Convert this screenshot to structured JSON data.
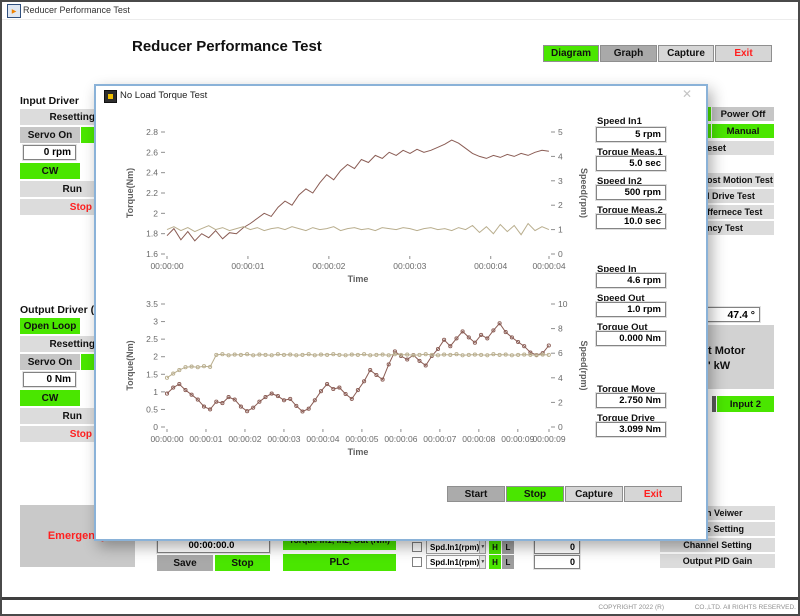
{
  "window": {
    "title": "Reducer Performance Test"
  },
  "header": {
    "title": "Reducer Performance Test"
  },
  "nav": {
    "diagram": "Diagram",
    "graph": "Graph",
    "capture": "Capture",
    "exit": "Exit"
  },
  "input_driver": {
    "title": "Input Driver",
    "resetting": "Resetting",
    "servo_on": "Servo On",
    "speed_value": "0 rpm",
    "cw": "CW",
    "run": "Run",
    "stop": "Stop"
  },
  "output_driver": {
    "title": "Output Driver (Torq",
    "open_loop": "Open Loop",
    "resetting": "Resetting",
    "servo_on": "Servo On",
    "torque_value": "0 Nm",
    "cw": "CW",
    "run": "Run",
    "stop": "Stop"
  },
  "right_panel": {
    "power_off": "Power Off",
    "manual": "Manual",
    "reset_frag": "eset",
    "tests": [
      "ost Motion Test",
      "l Drive Test",
      "ffernece Test",
      "ncy Test"
    ],
    "temp_value": "47.4 °",
    "motor_frag1": "t Motor",
    "motor_frag2": "' kW",
    "input2": "Input 2"
  },
  "emergency": {
    "label": "Emergency"
  },
  "bottom": {
    "timer": "00:00:00.0",
    "save": "Save",
    "stop": "Stop",
    "torque_button": "Torque In1, In2, Out (Nm)",
    "plc": "PLC",
    "monitor_rows": [
      {
        "select": "Spd.In1(rpm)",
        "h": "H",
        "l": "L",
        "value": "0"
      },
      {
        "select": "Spd.In1(rpm)",
        "h": "H",
        "l": "L",
        "value": "0"
      }
    ],
    "right_buttons": [
      "n Veiwer",
      "e Setting",
      "Channel Setting",
      "Output PID Gain"
    ],
    "copyright_left": "COPYRIGHT 2022 (R)",
    "copyright_right": "CO.,LTD. All RIGHTS RESERVED."
  },
  "dialog": {
    "title": "No Load Torque Test",
    "close": "✕",
    "fields": [
      {
        "label": "Speed In1",
        "value": "5 rpm"
      },
      {
        "label": "Torque Meas.1",
        "value": "5.0 sec"
      },
      {
        "label": "Speed In2",
        "value": "500 rpm"
      },
      {
        "label": "Torque Meas.2",
        "value": "10.0 sec"
      },
      {
        "label": "Speed In",
        "value": "4.6 rpm"
      },
      {
        "label": "Speed Out",
        "value": "1.0 rpm"
      },
      {
        "label": "Torque Out",
        "value": "0.000 Nm"
      },
      {
        "label": "Torque Move",
        "value": "2.750 Nm"
      },
      {
        "label": "Torque Drive",
        "value": "3.099 Nm"
      }
    ],
    "buttons": {
      "start": "Start",
      "stop": "Stop",
      "capture": "Capture",
      "exit": "Exit"
    }
  },
  "icons": {
    "dropdown": "▼"
  },
  "colors": {
    "green": "#4ae600",
    "dialog_border": "#8ab2d8",
    "series_torque": "#8a5c54",
    "series_speed": "#b9ae8e"
  },
  "chart_data": [
    {
      "type": "line",
      "title": "",
      "xlabel": "Time",
      "ylabel": "Torque(Nm)",
      "y2label": "Speed(rpm)",
      "xlim": [
        0,
        4.72
      ],
      "ylim": [
        1.6,
        2.8
      ],
      "y2lim": [
        0,
        5
      ],
      "grid": false,
      "legend": "none",
      "plot": {
        "l": 63,
        "r": 445,
        "t": 22,
        "b": 144
      },
      "yticks": [
        1.6,
        1.8,
        2,
        2.2,
        2.4,
        2.6,
        2.8
      ],
      "y2ticks": [
        0,
        1,
        2,
        3,
        4,
        5
      ],
      "xticks": [
        {
          "t": 0,
          "label": "00:00:00"
        },
        {
          "t": 1,
          "label": "00:00:01"
        },
        {
          "t": 2,
          "label": "00:00:02"
        },
        {
          "t": 3,
          "label": "00:00:03"
        },
        {
          "t": 4,
          "label": "00:00:04"
        },
        {
          "t": 4.72,
          "label": "00:00:04"
        }
      ],
      "series": [
        {
          "name": "Torque",
          "axis": "y",
          "color": "#8a5c54",
          "markers": false,
          "t0": 0,
          "dt": 0.0858,
          "values": [
            1.78,
            1.85,
            1.74,
            1.82,
            1.73,
            1.8,
            1.76,
            1.83,
            1.75,
            1.81,
            1.8,
            1.86,
            1.9,
            1.95,
            2.0,
            1.97,
            2.06,
            2.12,
            2.08,
            2.18,
            2.24,
            2.2,
            2.3,
            2.38,
            2.33,
            2.42,
            2.48,
            2.44,
            2.53,
            2.5,
            2.57,
            2.54,
            2.6,
            2.57,
            2.62,
            2.59,
            2.63,
            2.6,
            2.62,
            2.65,
            2.68,
            2.72,
            2.69,
            2.64,
            2.59,
            2.56,
            2.54,
            2.57,
            2.55,
            2.58,
            2.56,
            2.59,
            2.57,
            2.6,
            2.62,
            2.61
          ]
        },
        {
          "name": "Speed",
          "axis": "y2",
          "color": "#b9ae8e",
          "markers": false,
          "t0": 0,
          "dt": 0.0858,
          "values": [
            1.0,
            1.12,
            0.96,
            1.08,
            0.92,
            1.04,
            1.16,
            1.0,
            1.08,
            0.96,
            1.04,
            1.12,
            1.0,
            1.08,
            0.96,
            1.04,
            1.08,
            1.0,
            1.12,
            1.04,
            0.96,
            1.08,
            1.0,
            1.04,
            1.12,
            0.96,
            1.04,
            1.08,
            1.0,
            1.04,
            0.96,
            1.08,
            1.04,
            1.0,
            1.08,
            1.04,
            0.96,
            1.04,
            1.08,
            1.0,
            1.04,
            0.96,
            1.08,
            1.0,
            1.17,
            0.88,
            1.12,
            0.83,
            1.21,
            0.92,
            1.17,
            0.79,
            1.25,
            0.96,
            1.12,
            1.0
          ]
        }
      ]
    },
    {
      "type": "line",
      "title": "",
      "xlabel": "Time",
      "ylabel": "Torque(Nm)",
      "y2label": "Speed(rpm)",
      "xlim": [
        0,
        9.8
      ],
      "ylim": [
        0,
        3.5
      ],
      "y2lim": [
        0,
        10
      ],
      "grid": false,
      "legend": "none",
      "plot": {
        "l": 63,
        "r": 445,
        "t": 14,
        "b": 137
      },
      "yticks": [
        0,
        0.5,
        1,
        1.5,
        2,
        2.5,
        3,
        3.5
      ],
      "y2ticks": [
        0,
        2,
        4,
        6,
        8,
        10
      ],
      "xticks": [
        {
          "t": 0,
          "label": "00:00:00"
        },
        {
          "t": 1,
          "label": "00:00:01"
        },
        {
          "t": 2,
          "label": "00:00:02"
        },
        {
          "t": 3,
          "label": "00:00:03"
        },
        {
          "t": 4,
          "label": "00:00:04"
        },
        {
          "t": 5,
          "label": "00:00:05"
        },
        {
          "t": 6,
          "label": "00:00:06"
        },
        {
          "t": 7,
          "label": "00:00:07"
        },
        {
          "t": 8,
          "label": "00:00:08"
        },
        {
          "t": 9,
          "label": "00:00:09"
        },
        {
          "t": 9.8,
          "label": "00:00:09"
        }
      ],
      "series": [
        {
          "name": "Torque",
          "axis": "y",
          "color": "#8a5c54",
          "markers": true,
          "t0": 0,
          "dt": 0.158,
          "values": [
            0.95,
            1.12,
            1.22,
            1.05,
            0.92,
            0.78,
            0.58,
            0.5,
            0.72,
            0.68,
            0.85,
            0.78,
            0.58,
            0.45,
            0.55,
            0.72,
            0.85,
            0.95,
            0.88,
            0.76,
            0.8,
            0.6,
            0.44,
            0.52,
            0.76,
            1.02,
            1.22,
            1.08,
            1.12,
            0.94,
            0.8,
            1.05,
            1.3,
            1.62,
            1.48,
            1.35,
            1.78,
            2.15,
            2.02,
            1.92,
            2.05,
            1.88,
            1.75,
            2.02,
            2.22,
            2.48,
            2.3,
            2.52,
            2.72,
            2.55,
            2.4,
            2.62,
            2.52,
            2.75,
            2.95,
            2.7,
            2.55,
            2.42,
            2.3,
            2.12,
            2.05,
            2.1,
            2.32
          ]
        },
        {
          "name": "Speed",
          "axis": "y2",
          "color": "#b9ae8e",
          "markers": true,
          "t0": 0,
          "dt": 0.158,
          "values": [
            4.0,
            4.34,
            4.63,
            4.86,
            4.91,
            4.86,
            4.94,
            4.89,
            5.86,
            5.92,
            5.83,
            5.89,
            5.86,
            5.92,
            5.83,
            5.89,
            5.86,
            5.83,
            5.92,
            5.86,
            5.89,
            5.83,
            5.86,
            5.92,
            5.83,
            5.89,
            5.86,
            5.92,
            5.86,
            5.83,
            5.89,
            5.86,
            5.92,
            5.83,
            5.86,
            5.89,
            5.83,
            5.92,
            5.86,
            5.89,
            5.83,
            5.86,
            5.92,
            5.86,
            5.83,
            5.89,
            5.86,
            5.92,
            5.83,
            5.86,
            5.89,
            5.86,
            5.83,
            5.92,
            5.86,
            5.89,
            5.83,
            5.86,
            5.89,
            5.86,
            5.83,
            5.89,
            5.86
          ]
        }
      ]
    }
  ]
}
